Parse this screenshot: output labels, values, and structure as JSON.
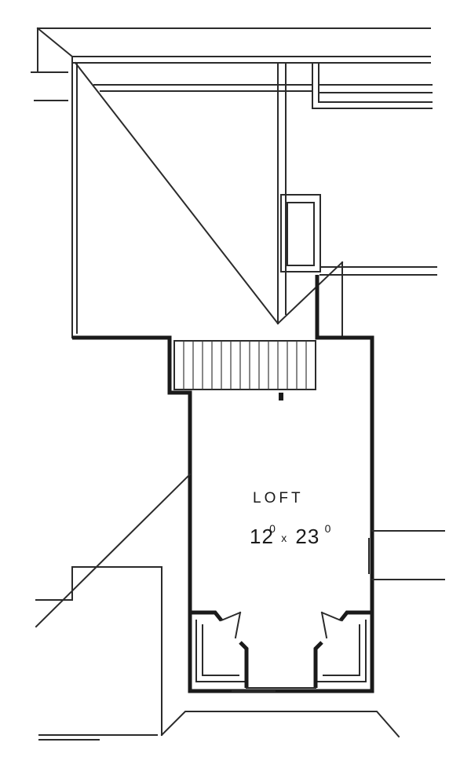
{
  "room": {
    "name": "LOFT",
    "width_ft": "12",
    "width_in": "0",
    "separator": "x",
    "length_ft": "23",
    "length_in": "0"
  },
  "colors": {
    "line": "#2b2b2b",
    "wall": "#1a1a1a",
    "background": "#ffffff"
  }
}
